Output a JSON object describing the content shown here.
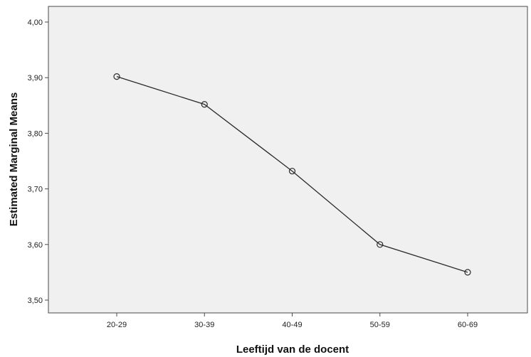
{
  "chart_data": {
    "type": "line",
    "title": "",
    "xlabel": "Leeftijd van de docent",
    "ylabel": "Estimated Marginal Means",
    "categories": [
      "20-29",
      "30-39",
      "40-49",
      "50-59",
      "60-69"
    ],
    "series": [
      {
        "values": [
          3.902,
          3.852,
          3.732,
          3.6,
          3.55
        ]
      }
    ],
    "ylim": [
      3.5,
      4.0
    ],
    "yticks": [
      "3,50",
      "3,60",
      "3,70",
      "3,80",
      "3,90",
      "4,00"
    ],
    "grid": false,
    "colors": {
      "plot_background": "#f0f0f0",
      "line": "#2b2b2b",
      "marker": "#2b2b2b"
    },
    "marker": "open-circle"
  }
}
